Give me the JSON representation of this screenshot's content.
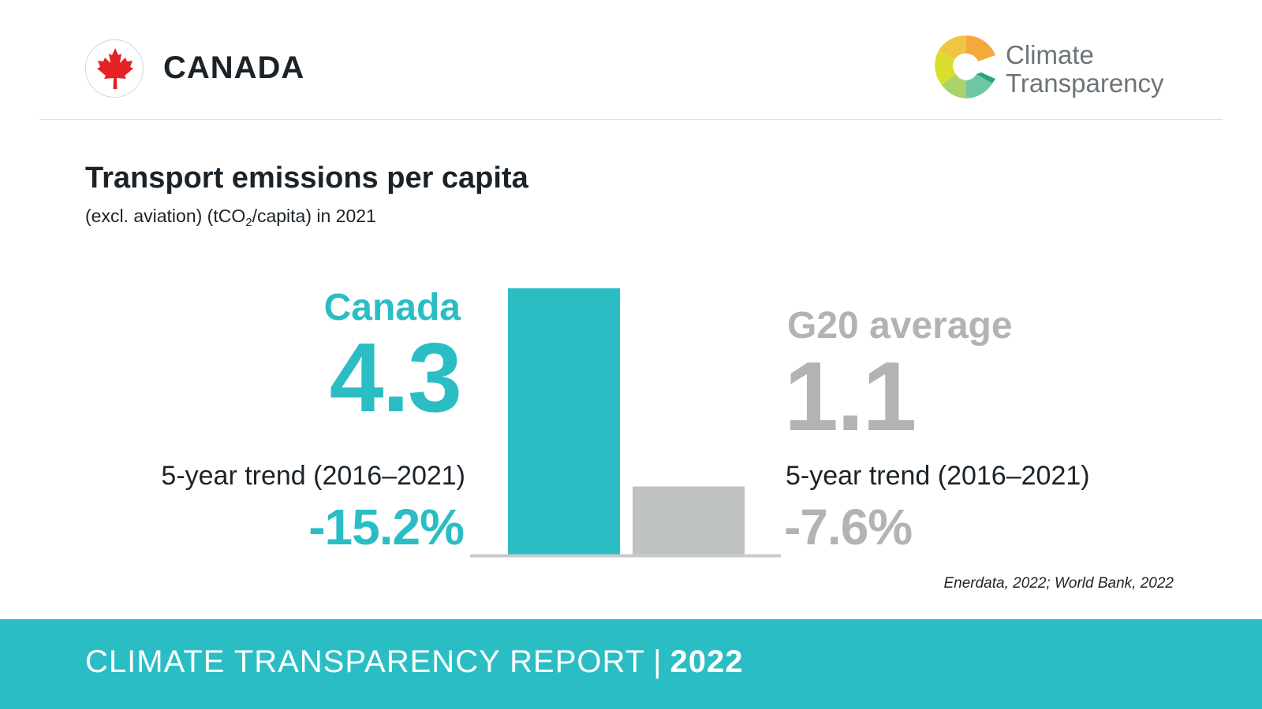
{
  "header": {
    "country": "CANADA",
    "brand_line1": "Climate",
    "brand_line2": "Transparency",
    "flag_icon": "maple-leaf-icon",
    "brand_logo_icon": "climate-transparency-logo-icon"
  },
  "chart_data": {
    "type": "bar",
    "title": "Transport emissions per capita",
    "subtitle_pre": "(excl. aviation) (tCO",
    "subtitle_sub": "2",
    "subtitle_post": "/capita) in 2021",
    "categories": [
      "Canada",
      "G20 average"
    ],
    "values": [
      4.3,
      1.1
    ],
    "value_labels": [
      "4.3",
      "1.1"
    ],
    "trend_label": "5-year trend (2016–2021)",
    "trends": [
      "-15.2%",
      "-7.6%"
    ],
    "colors": [
      "#2abec4",
      "#bfc2c3"
    ],
    "axis_color": "#c9cbcb"
  },
  "source": "Enerdata, 2022; World Bank, 2022",
  "footer": {
    "report": "CLIMATE TRANSPARENCY REPORT",
    "separator": "|",
    "year": "2022",
    "background": "#2abec4"
  }
}
